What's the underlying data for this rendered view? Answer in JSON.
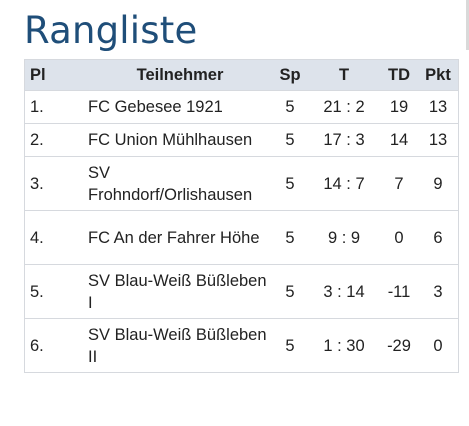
{
  "page": {
    "title": "Rangliste"
  },
  "table": {
    "headers": {
      "pl": "Pl",
      "team": "Teilnehmer",
      "sp": "Sp",
      "t": "T",
      "td": "TD",
      "pkt": "Pkt"
    },
    "rows": [
      {
        "pl": "1.",
        "team": "FC Gebesee 1921",
        "sp": "5",
        "t": "21 : 2",
        "td": "19",
        "pkt": "13"
      },
      {
        "pl": "2.",
        "team": "FC Union Mühlhausen",
        "sp": "5",
        "t": "17 : 3",
        "td": "14",
        "pkt": "13"
      },
      {
        "pl": "3.",
        "team": "SV Frohndorf/Orlishausen",
        "sp": "5",
        "t": "14 : 7",
        "td": "7",
        "pkt": "9"
      },
      {
        "pl": "4.",
        "team": "FC An der Fahrer Höhe",
        "sp": "5",
        "t": "9 : 9",
        "td": "0",
        "pkt": "6"
      },
      {
        "pl": "5.",
        "team": "SV Blau-Weiß Büßleben I",
        "sp": "5",
        "t": "3 : 14",
        "td": "-11",
        "pkt": "3"
      },
      {
        "pl": "6.",
        "team": "SV Blau-Weiß Büßleben II",
        "sp": "5",
        "t": "1 : 30",
        "td": "-29",
        "pkt": "0"
      }
    ]
  },
  "colors": {
    "title": "#1f4e79",
    "header_bg": "#dde3eb",
    "border": "#d6d9de"
  }
}
